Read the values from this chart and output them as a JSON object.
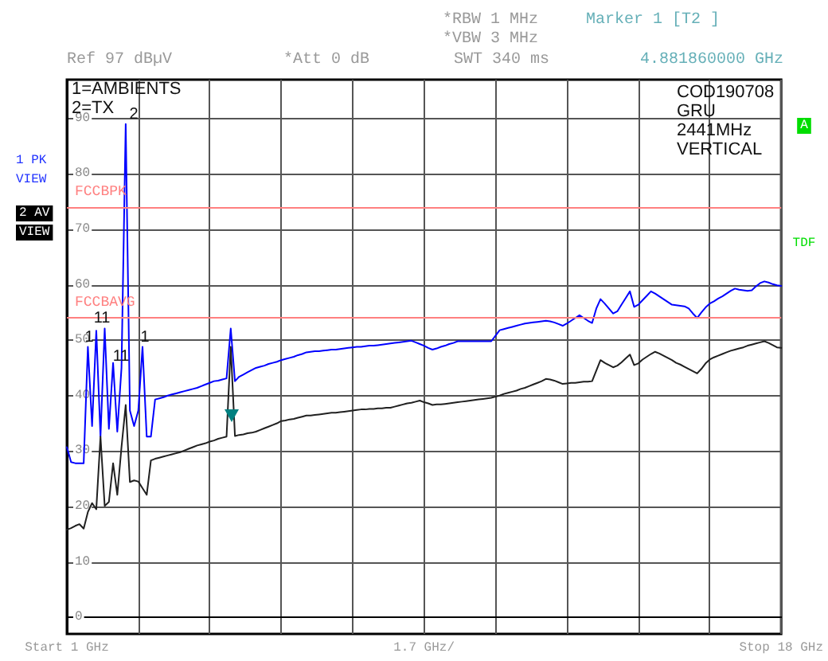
{
  "chart_data": {
    "type": "line",
    "categories": [
      "Start 1 GHz",
      null,
      null,
      null,
      null,
      null,
      null,
      null,
      null,
      null,
      null,
      null,
      null,
      null,
      null,
      null,
      null,
      null,
      null,
      null,
      null,
      null,
      null,
      null,
      null,
      null,
      null,
      null,
      null,
      null,
      null,
      null,
      null,
      null,
      null,
      null,
      null,
      null,
      null,
      null,
      null,
      null,
      null,
      null,
      null,
      null,
      null,
      null,
      null,
      null,
      null,
      null,
      null,
      null,
      null,
      null,
      null,
      null,
      null,
      null,
      null,
      null,
      null,
      null,
      null,
      null,
      null,
      null,
      null,
      null,
      null,
      null,
      null,
      null,
      null,
      null,
      null,
      null,
      null,
      null,
      null,
      null,
      null,
      null,
      null,
      "1.7 GHz/",
      null,
      null,
      null,
      null,
      null,
      null,
      null,
      null,
      null,
      null,
      null,
      null,
      null,
      null,
      null,
      null,
      null,
      null,
      null,
      null,
      null,
      null,
      null,
      null,
      null,
      null,
      null,
      null,
      null,
      null,
      null,
      null,
      null,
      null,
      null,
      null,
      null,
      null,
      null,
      null,
      null,
      null,
      null,
      null,
      null,
      null,
      null,
      null,
      null,
      null,
      null,
      null,
      null,
      null,
      null,
      null,
      null,
      null,
      null,
      null,
      null,
      null,
      null,
      null,
      null,
      null,
      null,
      null,
      null,
      null,
      null,
      null,
      null,
      null,
      null,
      null,
      null,
      null,
      null,
      null,
      null,
      null,
      null,
      null,
      "Stop 18 GHz"
    ],
    "ylim": [
      -3,
      97
    ],
    "yticks": [
      0,
      10,
      20,
      30,
      40,
      50,
      60,
      70,
      80,
      90
    ],
    "grid": true,
    "marker": "none",
    "line_style": "solid",
    "series": [
      {
        "color": "#0000ff",
        "values": [
          30.7,
          28,
          27.8,
          27.8,
          27.8,
          48.8,
          34.5,
          51.7,
          32.6,
          52.1,
          34,
          45.9,
          33.5,
          45,
          89,
          37.3,
          34.5,
          37.3,
          48.8,
          32.6,
          32.6,
          39.3,
          39.5,
          39.7,
          40,
          40.2,
          40.4,
          40.6,
          40.8,
          41,
          41.2,
          41.4,
          41.7,
          42,
          42.3,
          42.6,
          42.7,
          42.9,
          43.1,
          52.1,
          42.6,
          43.4,
          43.8,
          44.2,
          44.6,
          45,
          45.2,
          45.4,
          45.7,
          45.9,
          46.1,
          46.4,
          46.6,
          46.8,
          47,
          47.3,
          47.5,
          47.8,
          47.9,
          48,
          48,
          48.1,
          48.2,
          48.3,
          48.3,
          48.4,
          48.5,
          48.6,
          48.7,
          48.8,
          48.8,
          48.9,
          49,
          49,
          49.1,
          49.2,
          49.3,
          49.4,
          49.5,
          49.6,
          49.7,
          49.8,
          49.9,
          49.6,
          49.3,
          49,
          48.6,
          48.3,
          48.5,
          48.8,
          49,
          49.3,
          49.5,
          49.8,
          49.8,
          49.8,
          49.8,
          49.8,
          49.8,
          49.8,
          49.8,
          49.8,
          50.8,
          51.8,
          52,
          52.2,
          52.4,
          52.6,
          52.8,
          53,
          53.1,
          53.2,
          53.3,
          53.4,
          53.5,
          53.4,
          53.2,
          52.9,
          52.6,
          53,
          53.5,
          54,
          54.5,
          54,
          53.5,
          53.1,
          55.7,
          57.4,
          56.6,
          55.7,
          54.8,
          55.2,
          56.4,
          57.6,
          58.8,
          56,
          56.4,
          57.2,
          58,
          58.8,
          58.4,
          57.9,
          57.4,
          56.9,
          56.4,
          56.3,
          56.2,
          56.1,
          55.7,
          54.8,
          54,
          55,
          55.9,
          56.6,
          57,
          57.5,
          57.9,
          58.4,
          58.9,
          59.3,
          59.1,
          59,
          58.9,
          59,
          59.7,
          60.3,
          60.6,
          60.4,
          60.1,
          59.9,
          59.8
        ]
      },
      {
        "color": "#202020",
        "values": [
          15.8,
          16.1,
          16.5,
          16.8,
          16,
          19,
          20.6,
          19.5,
          32.6,
          20.1,
          20.8,
          27.8,
          22.1,
          30.7,
          38.3,
          24.4,
          24.7,
          24.5,
          23.3,
          22.1,
          28.3,
          28.6,
          28.8,
          29,
          29.2,
          29.4,
          29.6,
          29.8,
          30.1,
          30.4,
          30.7,
          31,
          31.2,
          31.4,
          31.7,
          31.9,
          32.2,
          32.4,
          32.6,
          48.8,
          32.7,
          32.9,
          33,
          33.2,
          33.3,
          33.5,
          33.8,
          34.1,
          34.4,
          34.7,
          35,
          35.4,
          35.5,
          35.7,
          35.8,
          36,
          36.2,
          36.4,
          36.4,
          36.5,
          36.6,
          36.7,
          36.8,
          36.9,
          36.9,
          37,
          37.1,
          37.2,
          37.3,
          37.4,
          37.5,
          37.5,
          37.6,
          37.6,
          37.7,
          37.7,
          37.8,
          37.8,
          38,
          38.2,
          38.4,
          38.6,
          38.7,
          38.9,
          39.1,
          38.8,
          38.6,
          38.3,
          38.4,
          38.4,
          38.5,
          38.6,
          38.7,
          38.8,
          38.9,
          39,
          39.1,
          39.2,
          39.3,
          39.4,
          39.5,
          39.6,
          39.8,
          40,
          40.3,
          40.5,
          40.7,
          40.9,
          41.2,
          41.4,
          41.7,
          42,
          42.3,
          42.6,
          43,
          42.9,
          42.7,
          42.4,
          42.1,
          42.2,
          42.3,
          42.3,
          42.4,
          42.5,
          42.5,
          42.6,
          44.5,
          46.4,
          45.9,
          45.5,
          45.1,
          45.4,
          46,
          46.7,
          47.4,
          45.5,
          45.8,
          46.5,
          47,
          47.5,
          47.9,
          47.6,
          47.2,
          46.8,
          46.4,
          45.9,
          45.6,
          45.2,
          44.8,
          44.4,
          44,
          44.8,
          45.8,
          46.5,
          46.9,
          47.2,
          47.5,
          47.8,
          48.1,
          48.3,
          48.5,
          48.7,
          49,
          49.2,
          49.4,
          49.6,
          49.8,
          49.5,
          49.1,
          48.7,
          48.6
        ]
      }
    ],
    "ref_lines": [
      {
        "axis": "y",
        "value": 74,
        "label": "FCCBPK",
        "color": "#ff8080"
      },
      {
        "axis": "y",
        "value": 54,
        "label": "FCCBAVG",
        "color": "#ff8080"
      }
    ],
    "annotations": [
      "Ref 97 dBµV",
      "*Att 0 dB",
      "*RBW 1 MHz",
      "*VBW 3 MHz",
      "SWT 340 ms",
      "Marker 1 [T2 ]",
      "4.881860000 GHz",
      "1=AMBIENTS",
      "2=TX",
      "COD190708",
      "GRU",
      "2441MHz",
      "VERTICAL",
      "1 PK",
      "VIEW",
      "2 AV",
      "VIEW",
      "A",
      "TDF",
      "2",
      "1",
      "11",
      "11",
      "1"
    ]
  }
}
